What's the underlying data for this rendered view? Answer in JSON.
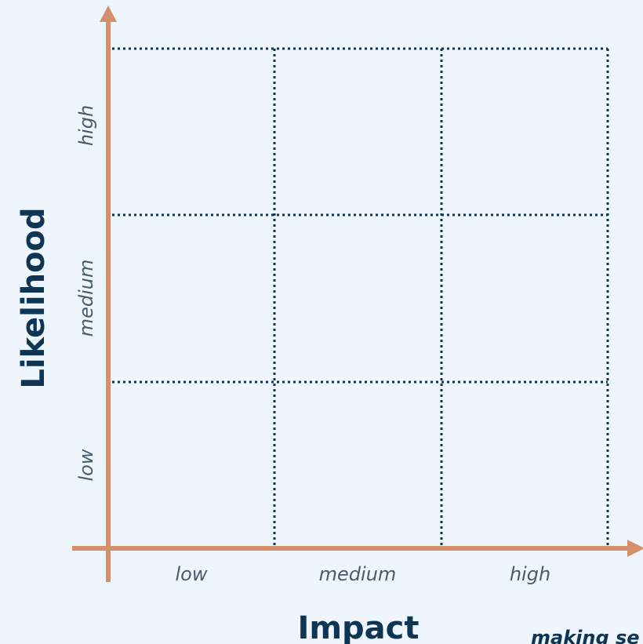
{
  "x_axis": {
    "title": "Impact",
    "ticks": [
      "low",
      "medium",
      "high"
    ]
  },
  "y_axis": {
    "title": "Likelihood",
    "ticks": [
      "low",
      "medium",
      "high"
    ]
  },
  "watermark": "making se",
  "colors": {
    "background": "#eef5fc",
    "axis": "#d4906b",
    "grid": "#0f3554",
    "title": "#0f3554",
    "tick": "#4a5a6a"
  }
}
